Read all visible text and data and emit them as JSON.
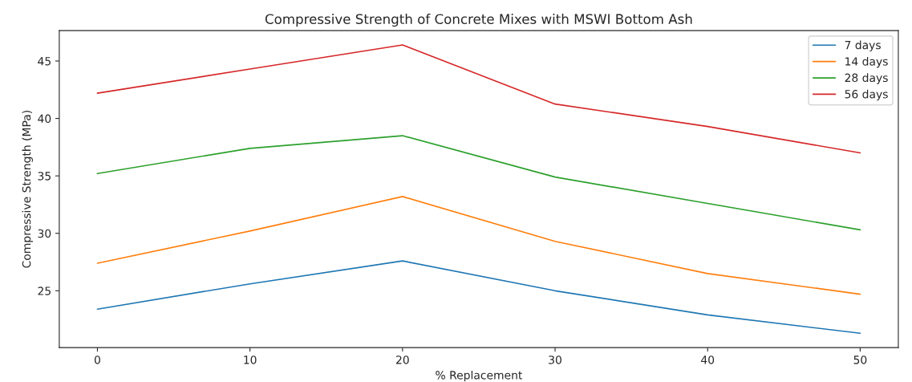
{
  "chart_data": {
    "type": "line",
    "title": "Compressive Strength of Concrete Mixes with MSWI Bottom Ash",
    "xlabel": "% Replacement",
    "ylabel": "Compressive Strength (MPa)",
    "x": [
      0,
      10,
      20,
      30,
      40,
      50
    ],
    "xlim": [
      -2.5,
      52.5
    ],
    "xticks": [
      0,
      10,
      20,
      30,
      40,
      50
    ],
    "ylim": [
      20.05,
      47.65
    ],
    "yticks": [
      25,
      30,
      35,
      40,
      45
    ],
    "legend": "top right",
    "grid": false,
    "series": [
      {
        "name": "7 days",
        "color": "#1f77b4",
        "values": [
          23.4,
          25.6,
          27.6,
          25.0,
          22.9,
          21.3
        ]
      },
      {
        "name": "14 days",
        "color": "#ff7f0e",
        "values": [
          27.4,
          30.2,
          33.2,
          29.3,
          26.5,
          24.7
        ]
      },
      {
        "name": "28 days",
        "color": "#2ca02c",
        "values": [
          35.2,
          37.4,
          38.5,
          34.9,
          32.6,
          30.3
        ]
      },
      {
        "name": "56 days",
        "color": "#d62728",
        "values": [
          42.2,
          44.3,
          46.4,
          41.25,
          39.3,
          37.0
        ]
      }
    ]
  }
}
